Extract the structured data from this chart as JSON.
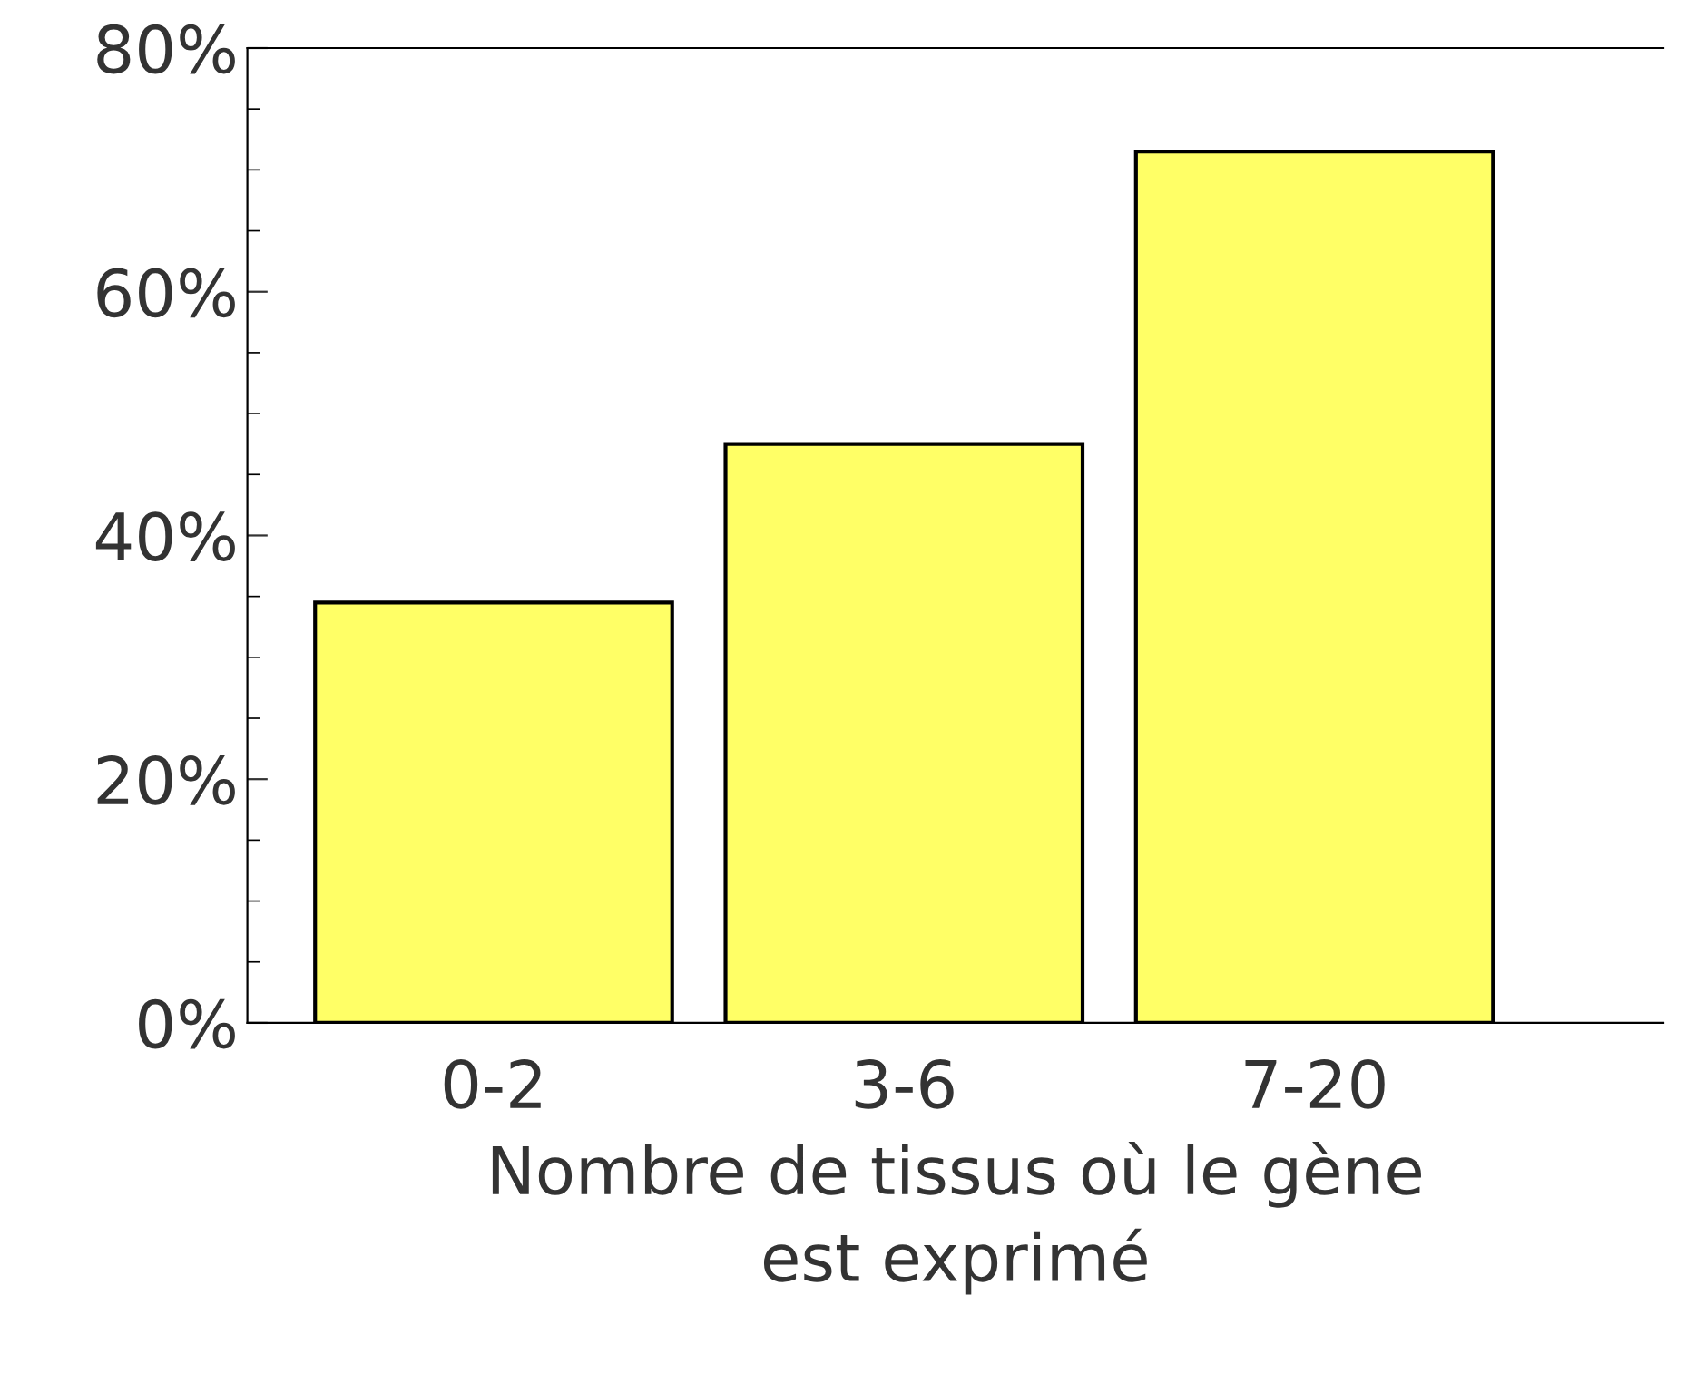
{
  "chart_data": {
    "type": "bar",
    "categories": [
      "0-2",
      "3-6",
      "7-20"
    ],
    "values": [
      34.5,
      47.5,
      71.5
    ],
    "color": "#ffff66",
    "xlabel": "Nombre de tissus où le gène\nest exprimé",
    "ylim": [
      0,
      80
    ],
    "yticks": [
      {
        "value": 0,
        "label": "0%"
      },
      {
        "value": 20,
        "label": "20%"
      },
      {
        "value": 40,
        "label": "40%"
      },
      {
        "value": 60,
        "label": "60%"
      },
      {
        "value": 80,
        "label": "80%"
      }
    ],
    "grid": false,
    "legend": false
  }
}
